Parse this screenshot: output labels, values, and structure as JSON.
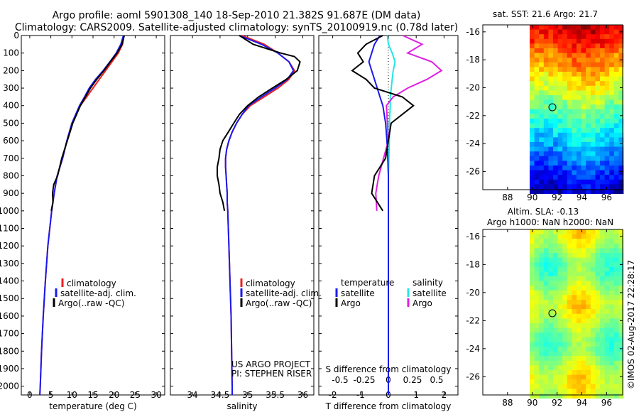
{
  "chart_data": {
    "type": "line",
    "title_line1": "Argo profile: aoml 5901308_140 18-Sep-2010 21.382S 91.687E (DM data)",
    "title_line2": "Climatology: CARS2009. Satellite-adjusted climatology: synTS_20100919.nc (0.78d later)",
    "depth_ticks": [
      "0",
      "100",
      "200",
      "300",
      "400",
      "500",
      "600",
      "700",
      "800",
      "900",
      "1000",
      "1100",
      "1200",
      "1300",
      "1400",
      "1500",
      "1600",
      "1700",
      "1800",
      "1900",
      "2000"
    ],
    "colors": {
      "climatology": "#ee2020",
      "satellite": "#1a1aee",
      "argo": "#000000",
      "sat_salinity": "#22e6e6",
      "argo_salinity": "#e020e0"
    },
    "temperature": {
      "xlabel": "temperature (deg C)",
      "xlim": [
        -2,
        32
      ],
      "xticks": [
        "0",
        "5",
        "10",
        "15",
        "20",
        "25",
        "30"
      ],
      "legend": [
        "climatology",
        "satellite-adj. clim.",
        "Argo(..raw -QC)"
      ],
      "depth": [
        0,
        50,
        100,
        150,
        200,
        250,
        300,
        350,
        400,
        500,
        600,
        700,
        800,
        900,
        1000,
        1200,
        1400,
        1600,
        1800,
        2000,
        2050
      ],
      "climatology": [
        22.3,
        22.0,
        21.0,
        19.5,
        18.0,
        16.5,
        15.0,
        13.5,
        12.0,
        10.0,
        8.8,
        7.8,
        6.5,
        5.8,
        5.2,
        4.3,
        3.7,
        3.2,
        2.8,
        2.5,
        2.4
      ],
      "satellite": [
        22.2,
        21.6,
        20.5,
        19.0,
        17.4,
        15.6,
        14.1,
        13.0,
        11.8,
        10.0,
        8.8,
        7.8,
        6.5,
        5.8,
        5.2,
        4.3,
        3.7,
        3.2,
        2.8,
        2.5,
        2.4
      ],
      "argo_depth": [
        0,
        50,
        100,
        150,
        200,
        250,
        300,
        350,
        400,
        500,
        600,
        700,
        800,
        850,
        900,
        950,
        1000
      ],
      "argo": [
        22.4,
        21.9,
        20.7,
        19.1,
        17.6,
        15.9,
        14.4,
        13.2,
        12.0,
        10.2,
        8.9,
        7.6,
        6.6,
        5.7,
        5.4,
        5.5,
        5.1
      ]
    },
    "salinity": {
      "xlabel": "salinity",
      "xlim": [
        33.6,
        36.2
      ],
      "xticks": [
        "34",
        "34.5",
        "35",
        "35.5",
        "36"
      ],
      "legend": [
        "climatology",
        "satellite-adj. clim.",
        "Argo(..raw -QC)"
      ],
      "credit_line1": "US ARGO PROJECT",
      "credit_line2": "PI: STEPHEN RISER",
      "depth": [
        0,
        50,
        100,
        150,
        200,
        250,
        300,
        350,
        400,
        450,
        500,
        550,
        600,
        650,
        700,
        750,
        800,
        850,
        900,
        950,
        1000,
        1200,
        1400,
        1600,
        1800,
        2000,
        2050
      ],
      "climatology": [
        34.9,
        35.3,
        35.55,
        35.75,
        35.85,
        35.75,
        35.55,
        35.3,
        35.05,
        34.9,
        34.8,
        34.72,
        34.66,
        34.62,
        34.6,
        34.6,
        34.61,
        34.62,
        34.63,
        34.63,
        34.64,
        34.66,
        34.68,
        34.7,
        34.71,
        34.72,
        34.72
      ],
      "satellite": [
        34.85,
        35.25,
        35.55,
        35.75,
        35.83,
        35.72,
        35.5,
        35.25,
        35.02,
        34.9,
        34.8,
        34.72,
        34.66,
        34.62,
        34.6,
        34.6,
        34.61,
        34.62,
        34.63,
        34.63,
        34.64,
        34.66,
        34.68,
        34.7,
        34.71,
        34.72,
        34.72
      ],
      "argo_depth": [
        0,
        50,
        100,
        120,
        150,
        200,
        250,
        300,
        350,
        400,
        450,
        500,
        550,
        600,
        650,
        700,
        750,
        800,
        850,
        900,
        950,
        1000
      ],
      "argo": [
        34.85,
        35.1,
        35.6,
        35.85,
        35.95,
        35.9,
        35.7,
        35.45,
        35.2,
        35.0,
        34.85,
        34.75,
        34.65,
        34.55,
        34.5,
        34.48,
        34.45,
        34.45,
        34.48,
        34.5,
        34.55,
        34.58
      ]
    },
    "difference": {
      "xlabel": "T difference from climatology",
      "xlabel_s": "S difference from climatology",
      "xlim": [
        -2.5,
        2.5
      ],
      "xticks": [
        "-2",
        "-1",
        "0",
        "1",
        "2"
      ],
      "sticks": [
        "-0.5",
        "-0.25",
        "0",
        "0.25",
        "0.5"
      ],
      "legend_temp_title": "temperature",
      "legend_sal_title": "salinity",
      "legend_items": [
        "satellite",
        "Argo",
        "satellite",
        "Argo"
      ],
      "depth": [
        0,
        50,
        100,
        150,
        200,
        250,
        300,
        350,
        400,
        500,
        600,
        700,
        800,
        900,
        1000,
        1200,
        1400,
        1600,
        1800,
        2000,
        2050
      ],
      "t_satellite": [
        -0.3,
        -0.5,
        -0.6,
        -0.7,
        -0.6,
        -0.5,
        -0.4,
        -0.3,
        -0.2,
        -0.1,
        -0.05,
        -0.02,
        0,
        0,
        0,
        0,
        0,
        0,
        0,
        0,
        0
      ],
      "t_argo": [
        -0.2,
        -0.8,
        -1.1,
        -0.9,
        -1.3,
        -0.8,
        -0.5,
        0.5,
        0.9,
        0.1,
        0,
        -0.1,
        -0.5,
        -0.6,
        -0.2,
        0,
        0,
        0,
        0,
        0,
        0
      ],
      "s_satellite": [
        -0.01,
        0,
        0.04,
        0.07,
        0.05,
        0.04,
        0.03,
        0.02,
        0.02,
        0.01,
        0.01,
        0.005,
        0,
        0,
        0,
        0,
        0,
        0,
        0,
        0,
        0
      ],
      "s_argo": [
        0.15,
        0.35,
        0.2,
        0.45,
        0.55,
        0.4,
        0.2,
        0.05,
        -0.02,
        -0.01,
        0,
        -0.05,
        -0.1,
        -0.13,
        -0.12,
        0,
        0,
        0,
        0,
        0,
        0
      ]
    },
    "maps": {
      "sst_title": "sat. SST: 21.6 Argo: 21.7",
      "sla_title_line1": "Altim. SLA: -0.13",
      "sla_title_line2": "Argo h1000: NaN h2000: NaN",
      "yticks": [
        "-16",
        "-18",
        "-20",
        "-22",
        "-24",
        "-26"
      ],
      "xticks": [
        "88",
        "90",
        "92",
        "94",
        "96"
      ],
      "argo_lat": -21.382,
      "argo_lon": 91.687
    },
    "stamp": "©IMOS 02-Aug-2017 22:28:17"
  }
}
